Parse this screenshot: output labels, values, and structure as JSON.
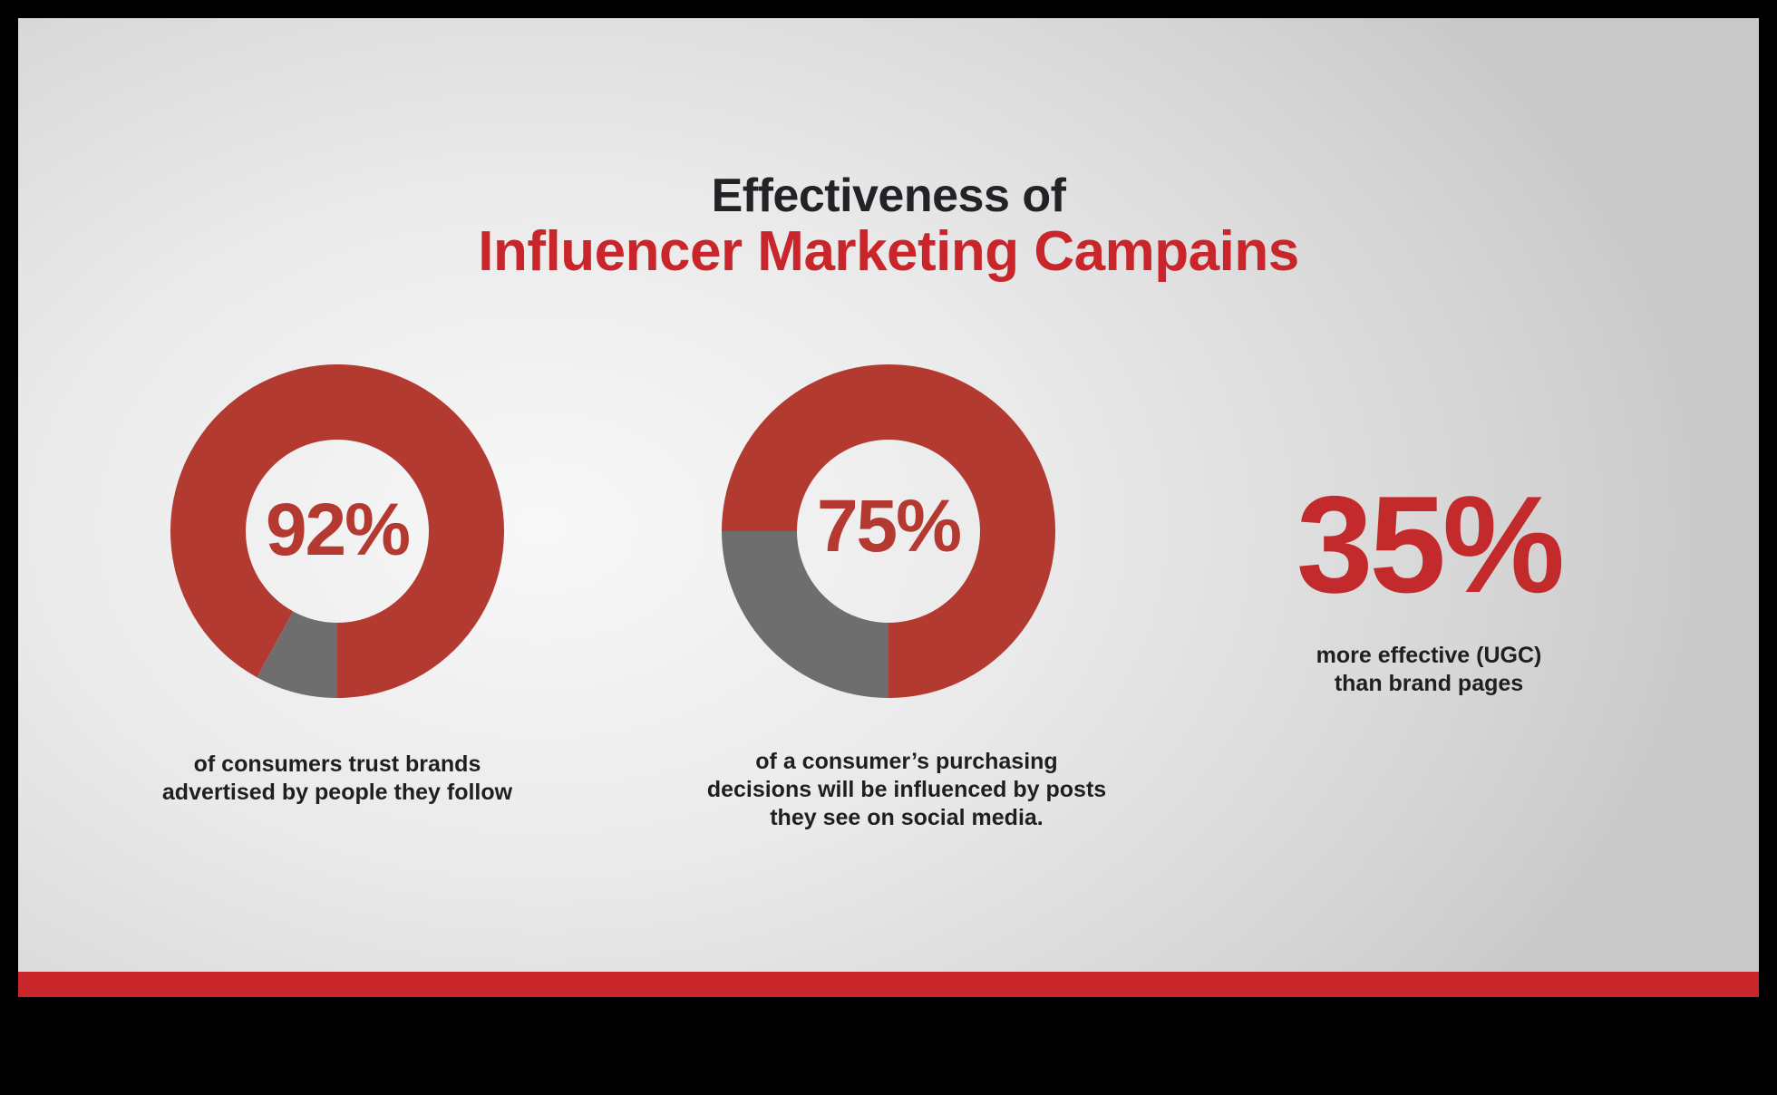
{
  "title": {
    "line1": "Effectiveness of",
    "line2": "Influencer Marketing Campains"
  },
  "colors": {
    "accent": "#c9262b",
    "donut_fill": "#b23a31",
    "donut_remainder": "#6e6e6e",
    "text_dark": "#1f1f22"
  },
  "chart_data": [
    {
      "type": "pie",
      "label": "92%",
      "values": [
        92,
        8
      ],
      "caption": [
        "of consumers trust brands",
        "advertised by people they follow"
      ]
    },
    {
      "type": "pie",
      "label": "75%",
      "values": [
        75,
        25
      ],
      "caption": [
        "of a consumer’s purchasing",
        "decisions will be influenced by posts",
        "they see on social media."
      ]
    }
  ],
  "stat": {
    "value": "35%",
    "caption": [
      "more effective (UGC)",
      "than brand pages"
    ]
  }
}
